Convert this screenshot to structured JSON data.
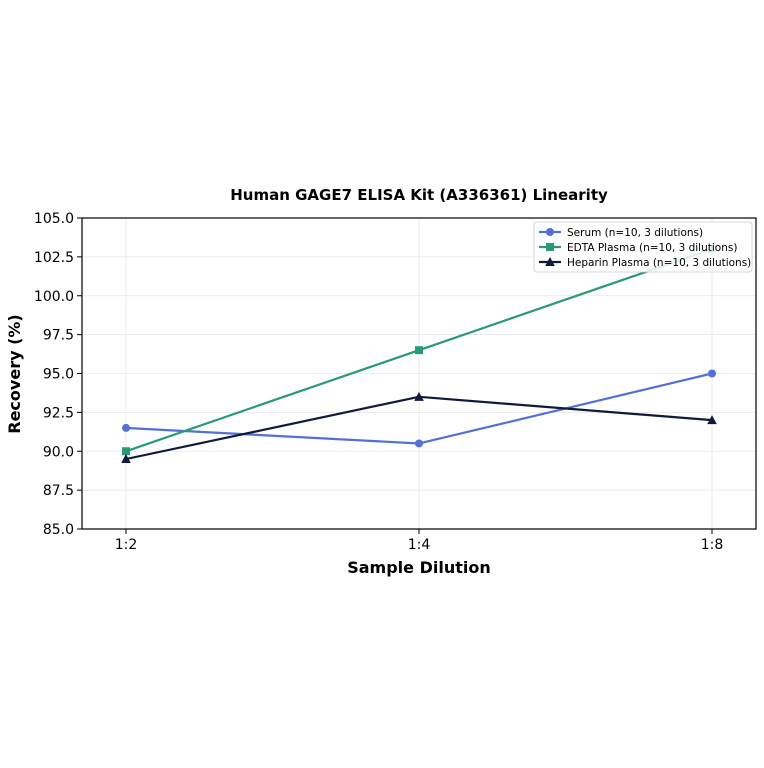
{
  "chart_data": {
    "type": "line",
    "title": "Human GAGE7 ELISA Kit (A336361) Linearity",
    "xlabel": "Sample Dilution",
    "ylabel": "Recovery (%)",
    "categories": [
      "1:2",
      "1:4",
      "1:8"
    ],
    "ylim": [
      85.0,
      105.0
    ],
    "yticks": [
      "85.0",
      "87.5",
      "90.0",
      "92.5",
      "95.0",
      "97.5",
      "100.0",
      "102.5",
      "105.0"
    ],
    "grid": true,
    "legend_position": "top-right",
    "series": [
      {
        "name": "Serum (n=10, 3 dilutions)",
        "values": [
          91.5,
          90.5,
          95.0
        ],
        "color": "#5470d6",
        "marker": "circle"
      },
      {
        "name": "EDTA Plasma (n=10, 3 dilutions)",
        "values": [
          90.0,
          96.5,
          103.0
        ],
        "color": "#2a9a74",
        "marker": "square"
      },
      {
        "name": "Heparin Plasma (n=10, 3 dilutions)",
        "values": [
          89.5,
          93.5,
          92.0
        ],
        "color": "#111a3a",
        "marker": "triangle"
      }
    ]
  }
}
